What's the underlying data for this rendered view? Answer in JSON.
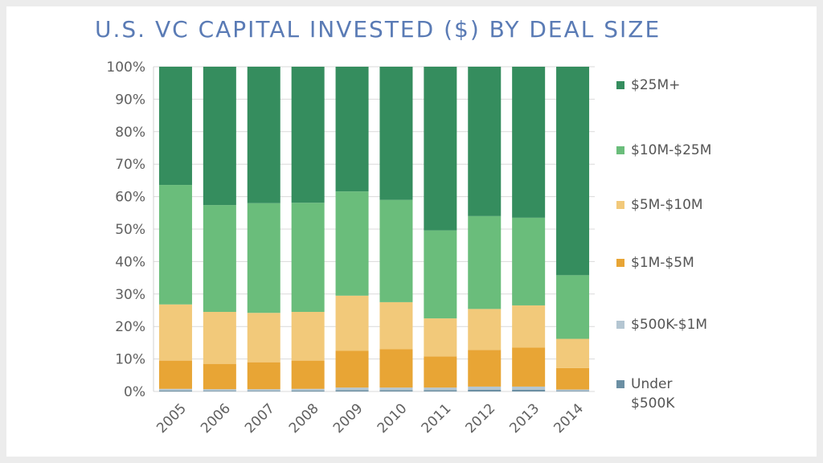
{
  "chart_data": {
    "type": "bar",
    "stacked": true,
    "percent": true,
    "title": "U.S. VC CAPITAL INVESTED ($) BY DEAL SIZE",
    "xlabel": "",
    "ylabel": "",
    "ylim": [
      0,
      100
    ],
    "y_ticks": [
      "0%",
      "10%",
      "20%",
      "30%",
      "40%",
      "50%",
      "60%",
      "70%",
      "80%",
      "90%",
      "100%"
    ],
    "grid": true,
    "legend_position": "right",
    "categories": [
      "2005",
      "2006",
      "2007",
      "2008",
      "2009",
      "2010",
      "2011",
      "2012",
      "2013",
      "2014"
    ],
    "series": [
      {
        "name": "Under $500K",
        "color": "#6b8fa3",
        "values": [
          0.3,
          0.2,
          0.2,
          0.3,
          0.4,
          0.4,
          0.4,
          0.5,
          0.5,
          0.2
        ]
      },
      {
        "name": "$500K-$1M",
        "color": "#b4c6d2",
        "values": [
          0.5,
          0.5,
          0.5,
          0.5,
          0.8,
          0.8,
          0.8,
          1.0,
          1.0,
          0.4
        ]
      },
      {
        "name": "$1M-$5M",
        "color": "#e8a535",
        "values": [
          8.7,
          7.8,
          8.3,
          8.7,
          11.3,
          11.8,
          9.6,
          11.3,
          12.0,
          6.6
        ]
      },
      {
        "name": "$5M-$10M",
        "color": "#f2c97a",
        "values": [
          17.3,
          16.0,
          15.2,
          15.0,
          17.0,
          14.5,
          11.7,
          12.6,
          13.0,
          9.0
        ]
      },
      {
        "name": "$10M-$25M",
        "color": "#6abd7b",
        "values": [
          36.8,
          32.9,
          33.8,
          33.6,
          32.1,
          31.5,
          27.1,
          28.6,
          27.0,
          19.6
        ]
      },
      {
        "name": "$25M+",
        "color": "#358d5e",
        "values": [
          36.4,
          42.6,
          42.0,
          41.9,
          38.4,
          41.0,
          50.4,
          46.0,
          46.5,
          64.2
        ]
      }
    ],
    "legend_labels": [
      {
        "lines": [
          "$25M+"
        ],
        "color": "#358d5e"
      },
      {
        "lines": [
          "$10M-$25M"
        ],
        "color": "#6abd7b"
      },
      {
        "lines": [
          "$5M-$10M"
        ],
        "color": "#f2c97a"
      },
      {
        "lines": [
          "$1M-$5M"
        ],
        "color": "#e8a535"
      },
      {
        "lines": [
          "$500K-$1M"
        ],
        "color": "#b4c6d2"
      },
      {
        "lines": [
          "Under",
          "$500K"
        ],
        "color": "#6b8fa3"
      }
    ]
  }
}
